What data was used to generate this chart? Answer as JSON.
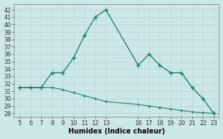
{
  "x_main": [
    5,
    6,
    7,
    8,
    9,
    10,
    11,
    12,
    13,
    16,
    17,
    18,
    19,
    20,
    21,
    22,
    23
  ],
  "y_main": [
    31.5,
    31.5,
    31.5,
    33.5,
    33.5,
    35.5,
    38.5,
    41,
    42,
    34.5,
    36,
    34.5,
    33.5,
    33.5,
    31.5,
    30,
    28
  ],
  "x_line2": [
    5,
    6,
    7,
    8,
    9,
    10,
    11,
    12,
    13,
    16,
    17,
    18,
    19,
    20,
    21,
    22,
    23
  ],
  "y_line2": [
    31.5,
    31.5,
    31.5,
    31.5,
    31.2,
    30.8,
    30.4,
    30.0,
    29.6,
    29.2,
    29.0,
    28.8,
    28.6,
    28.4,
    28.2,
    28.1,
    28.0
  ],
  "line_color": "#1a7a6e",
  "bg_color": "#cce8e4",
  "grid_color": "#b0d8d4",
  "xlabel": "Humidex (Indice chaleur)",
  "xticks": [
    5,
    6,
    7,
    8,
    9,
    10,
    11,
    12,
    13,
    16,
    17,
    18,
    19,
    20,
    21,
    22,
    23
  ],
  "yticks": [
    28,
    29,
    30,
    31,
    32,
    33,
    34,
    35,
    36,
    37,
    38,
    39,
    40,
    41,
    42
  ],
  "ylim": [
    27.5,
    42.8
  ],
  "xlim": [
    4.5,
    23.5
  ],
  "tick_fontsize": 6,
  "label_fontsize": 7
}
